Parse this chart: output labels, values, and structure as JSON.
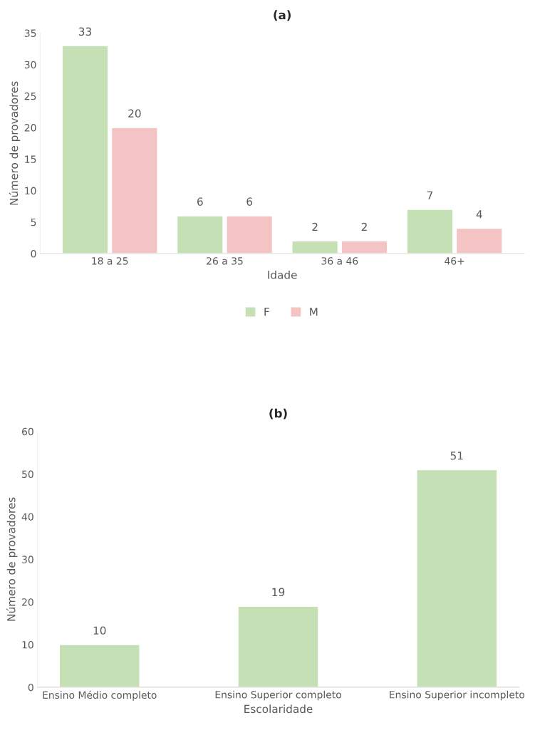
{
  "chart_data": [
    {
      "type": "bar",
      "title": "(a)",
      "xlabel": "Idade",
      "ylabel": "Número de provadores",
      "categories": [
        "18 a 25",
        "26 a 35",
        "36 a 46",
        "46+"
      ],
      "series": [
        {
          "name": "F",
          "color": "#c5e0b4",
          "values": [
            33,
            6,
            2,
            7
          ]
        },
        {
          "name": "M",
          "color": "#f4c4c4",
          "values": [
            20,
            6,
            2,
            4
          ]
        }
      ],
      "ylim": [
        0,
        35
      ],
      "yticks": [
        0,
        5,
        10,
        15,
        20,
        25,
        30,
        35
      ],
      "data_labels": true,
      "legend": "bottom",
      "grid": false
    },
    {
      "type": "bar",
      "title": "(b)",
      "xlabel": "Escolaridade",
      "ylabel": "Número de provadores",
      "categories": [
        "Ensino Médio completo",
        "Ensino Superior completo",
        "Ensino Superior incompleto"
      ],
      "series": [
        {
          "color": "#c5e0b4",
          "values": [
            10,
            19,
            51
          ]
        }
      ],
      "ylim": [
        0,
        60
      ],
      "yticks": [
        0,
        10,
        20,
        30,
        40,
        50,
        60
      ],
      "data_labels": true,
      "grid": false
    }
  ]
}
